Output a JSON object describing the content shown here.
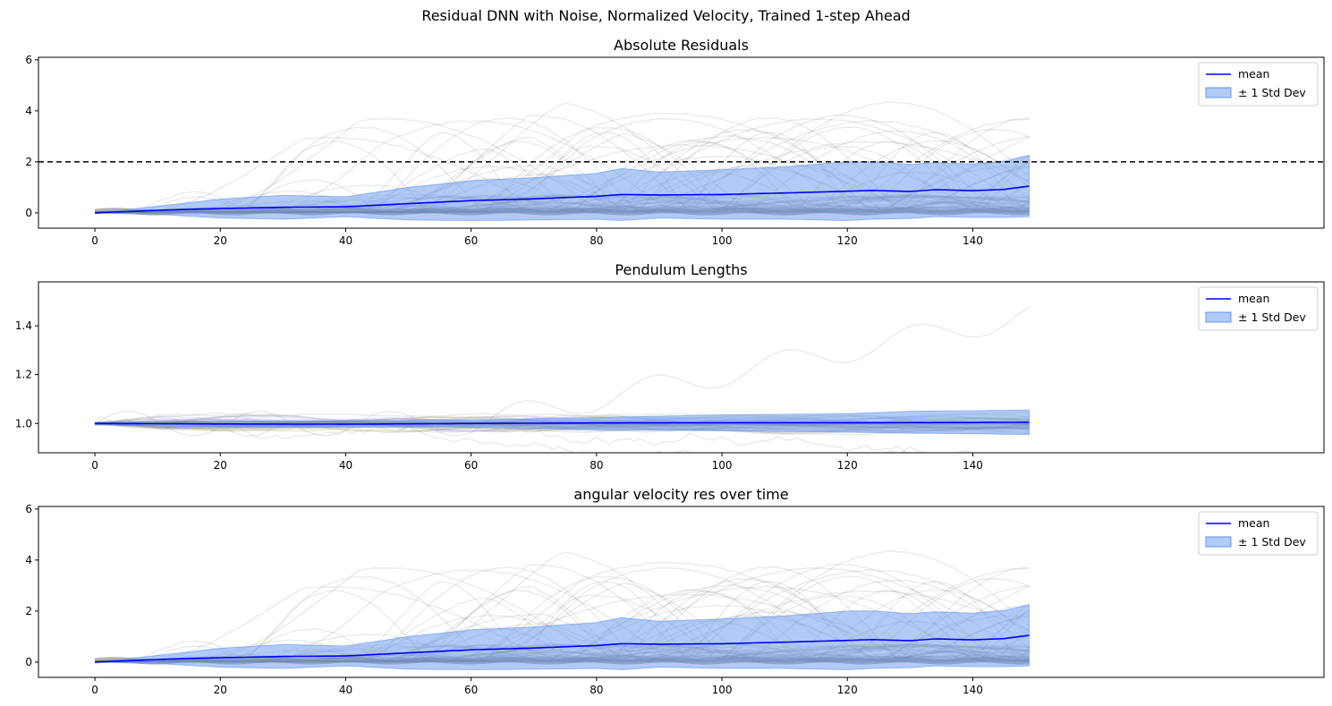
{
  "figure": {
    "suptitle": "Residual DNN with Noise, Normalized Velocity, Trained 1-step Ahead"
  },
  "colors": {
    "mean_line": "#0000ff",
    "std_fill": "#6495ed",
    "trace": "#808080",
    "threshold": "#000000"
  },
  "chart_data": [
    {
      "type": "line",
      "title": "Absolute Residuals",
      "xlim": [
        -9,
        196
      ],
      "ylim": [
        -0.6,
        6.1
      ],
      "xticks": [
        0,
        20,
        40,
        60,
        80,
        100,
        120,
        140
      ],
      "yticks": [
        0,
        2,
        4,
        6
      ],
      "grid": false,
      "legend": {
        "placement": "top-right",
        "entries": [
          "mean",
          "± 1 Std Dev"
        ]
      },
      "threshold": 2,
      "mean": {
        "x": [
          0,
          10,
          20,
          30,
          40,
          50,
          60,
          70,
          80,
          84,
          90,
          100,
          110,
          120,
          124,
          130,
          134,
          140,
          145,
          149
        ],
        "y": [
          0,
          0.1,
          0.17,
          0.22,
          0.24,
          0.36,
          0.48,
          0.55,
          0.65,
          0.72,
          0.7,
          0.72,
          0.78,
          0.85,
          0.88,
          0.84,
          0.91,
          0.87,
          0.92,
          1.05
        ]
      },
      "std_band": {
        "x": [
          0,
          10,
          20,
          30,
          40,
          50,
          60,
          70,
          80,
          84,
          90,
          100,
          110,
          120,
          124,
          130,
          134,
          140,
          145,
          149
        ],
        "lower": [
          0,
          -0.06,
          -0.2,
          -0.25,
          -0.15,
          -0.28,
          -0.3,
          -0.28,
          -0.25,
          -0.3,
          -0.2,
          -0.25,
          -0.25,
          -0.3,
          -0.25,
          -0.22,
          -0.15,
          -0.18,
          -0.18,
          -0.15
        ],
        "upper": [
          0,
          0.26,
          0.54,
          0.69,
          0.63,
          1.0,
          1.26,
          1.38,
          1.55,
          1.74,
          1.6,
          1.69,
          1.81,
          2.0,
          2.01,
          1.9,
          1.97,
          1.92,
          2.02,
          2.25
        ]
      },
      "traces": {
        "count": 60,
        "length": 150,
        "ymax": 4.9,
        "seed": 11
      }
    },
    {
      "type": "line",
      "title": "Pendulum Lengths",
      "xlim": [
        -9,
        196
      ],
      "ylim": [
        0.88,
        1.58
      ],
      "xticks": [
        0,
        20,
        40,
        60,
        80,
        100,
        120,
        140
      ],
      "yticks": [
        1.0,
        1.2,
        1.4
      ],
      "grid": false,
      "legend": {
        "placement": "top-right",
        "entries": [
          "mean",
          "± 1 Std Dev"
        ]
      },
      "mean": {
        "x": [
          0,
          20,
          40,
          60,
          80,
          100,
          120,
          140,
          149
        ],
        "y": [
          1.0,
          0.998,
          0.997,
          1.0,
          1.002,
          1.003,
          1.003,
          1.004,
          1.005
        ]
      },
      "std_band": {
        "x": [
          0,
          20,
          40,
          60,
          80,
          100,
          120,
          130,
          140,
          149
        ],
        "lower": [
          0.995,
          0.985,
          0.985,
          0.985,
          0.975,
          0.97,
          0.965,
          0.96,
          0.958,
          0.955
        ],
        "upper": [
          1.005,
          1.01,
          1.01,
          1.015,
          1.025,
          1.035,
          1.04,
          1.05,
          1.052,
          1.055
        ]
      },
      "traces": {
        "count": 40,
        "length": 150,
        "ymax": 1.54,
        "seed": 23
      }
    },
    {
      "type": "line",
      "title": "angular velocity res over time",
      "xlim": [
        -9,
        196
      ],
      "ylim": [
        -0.6,
        6.1
      ],
      "xticks": [
        0,
        20,
        40,
        60,
        80,
        100,
        120,
        140
      ],
      "yticks": [
        0,
        2,
        4,
        6
      ],
      "grid": false,
      "legend": {
        "placement": "top-right",
        "entries": [
          "mean",
          "± 1 Std Dev"
        ]
      },
      "mean": {
        "x": [
          0,
          10,
          20,
          30,
          40,
          50,
          60,
          70,
          80,
          84,
          90,
          100,
          110,
          120,
          124,
          130,
          134,
          140,
          145,
          149
        ],
        "y": [
          0,
          0.1,
          0.17,
          0.22,
          0.24,
          0.36,
          0.48,
          0.55,
          0.65,
          0.72,
          0.7,
          0.72,
          0.78,
          0.85,
          0.88,
          0.84,
          0.91,
          0.87,
          0.92,
          1.05
        ]
      },
      "std_band": {
        "x": [
          0,
          10,
          20,
          30,
          40,
          50,
          60,
          70,
          80,
          84,
          90,
          100,
          110,
          120,
          124,
          130,
          134,
          140,
          145,
          149
        ],
        "lower": [
          0,
          -0.06,
          -0.2,
          -0.25,
          -0.15,
          -0.28,
          -0.3,
          -0.28,
          -0.25,
          -0.3,
          -0.2,
          -0.25,
          -0.25,
          -0.3,
          -0.25,
          -0.22,
          -0.15,
          -0.18,
          -0.18,
          -0.15
        ],
        "upper": [
          0,
          0.26,
          0.54,
          0.69,
          0.63,
          1.0,
          1.26,
          1.38,
          1.55,
          1.74,
          1.6,
          1.69,
          1.81,
          2.0,
          2.01,
          1.9,
          1.97,
          1.92,
          2.02,
          2.25
        ]
      },
      "traces": {
        "count": 60,
        "length": 150,
        "ymax": 4.9,
        "seed": 11
      }
    }
  ]
}
